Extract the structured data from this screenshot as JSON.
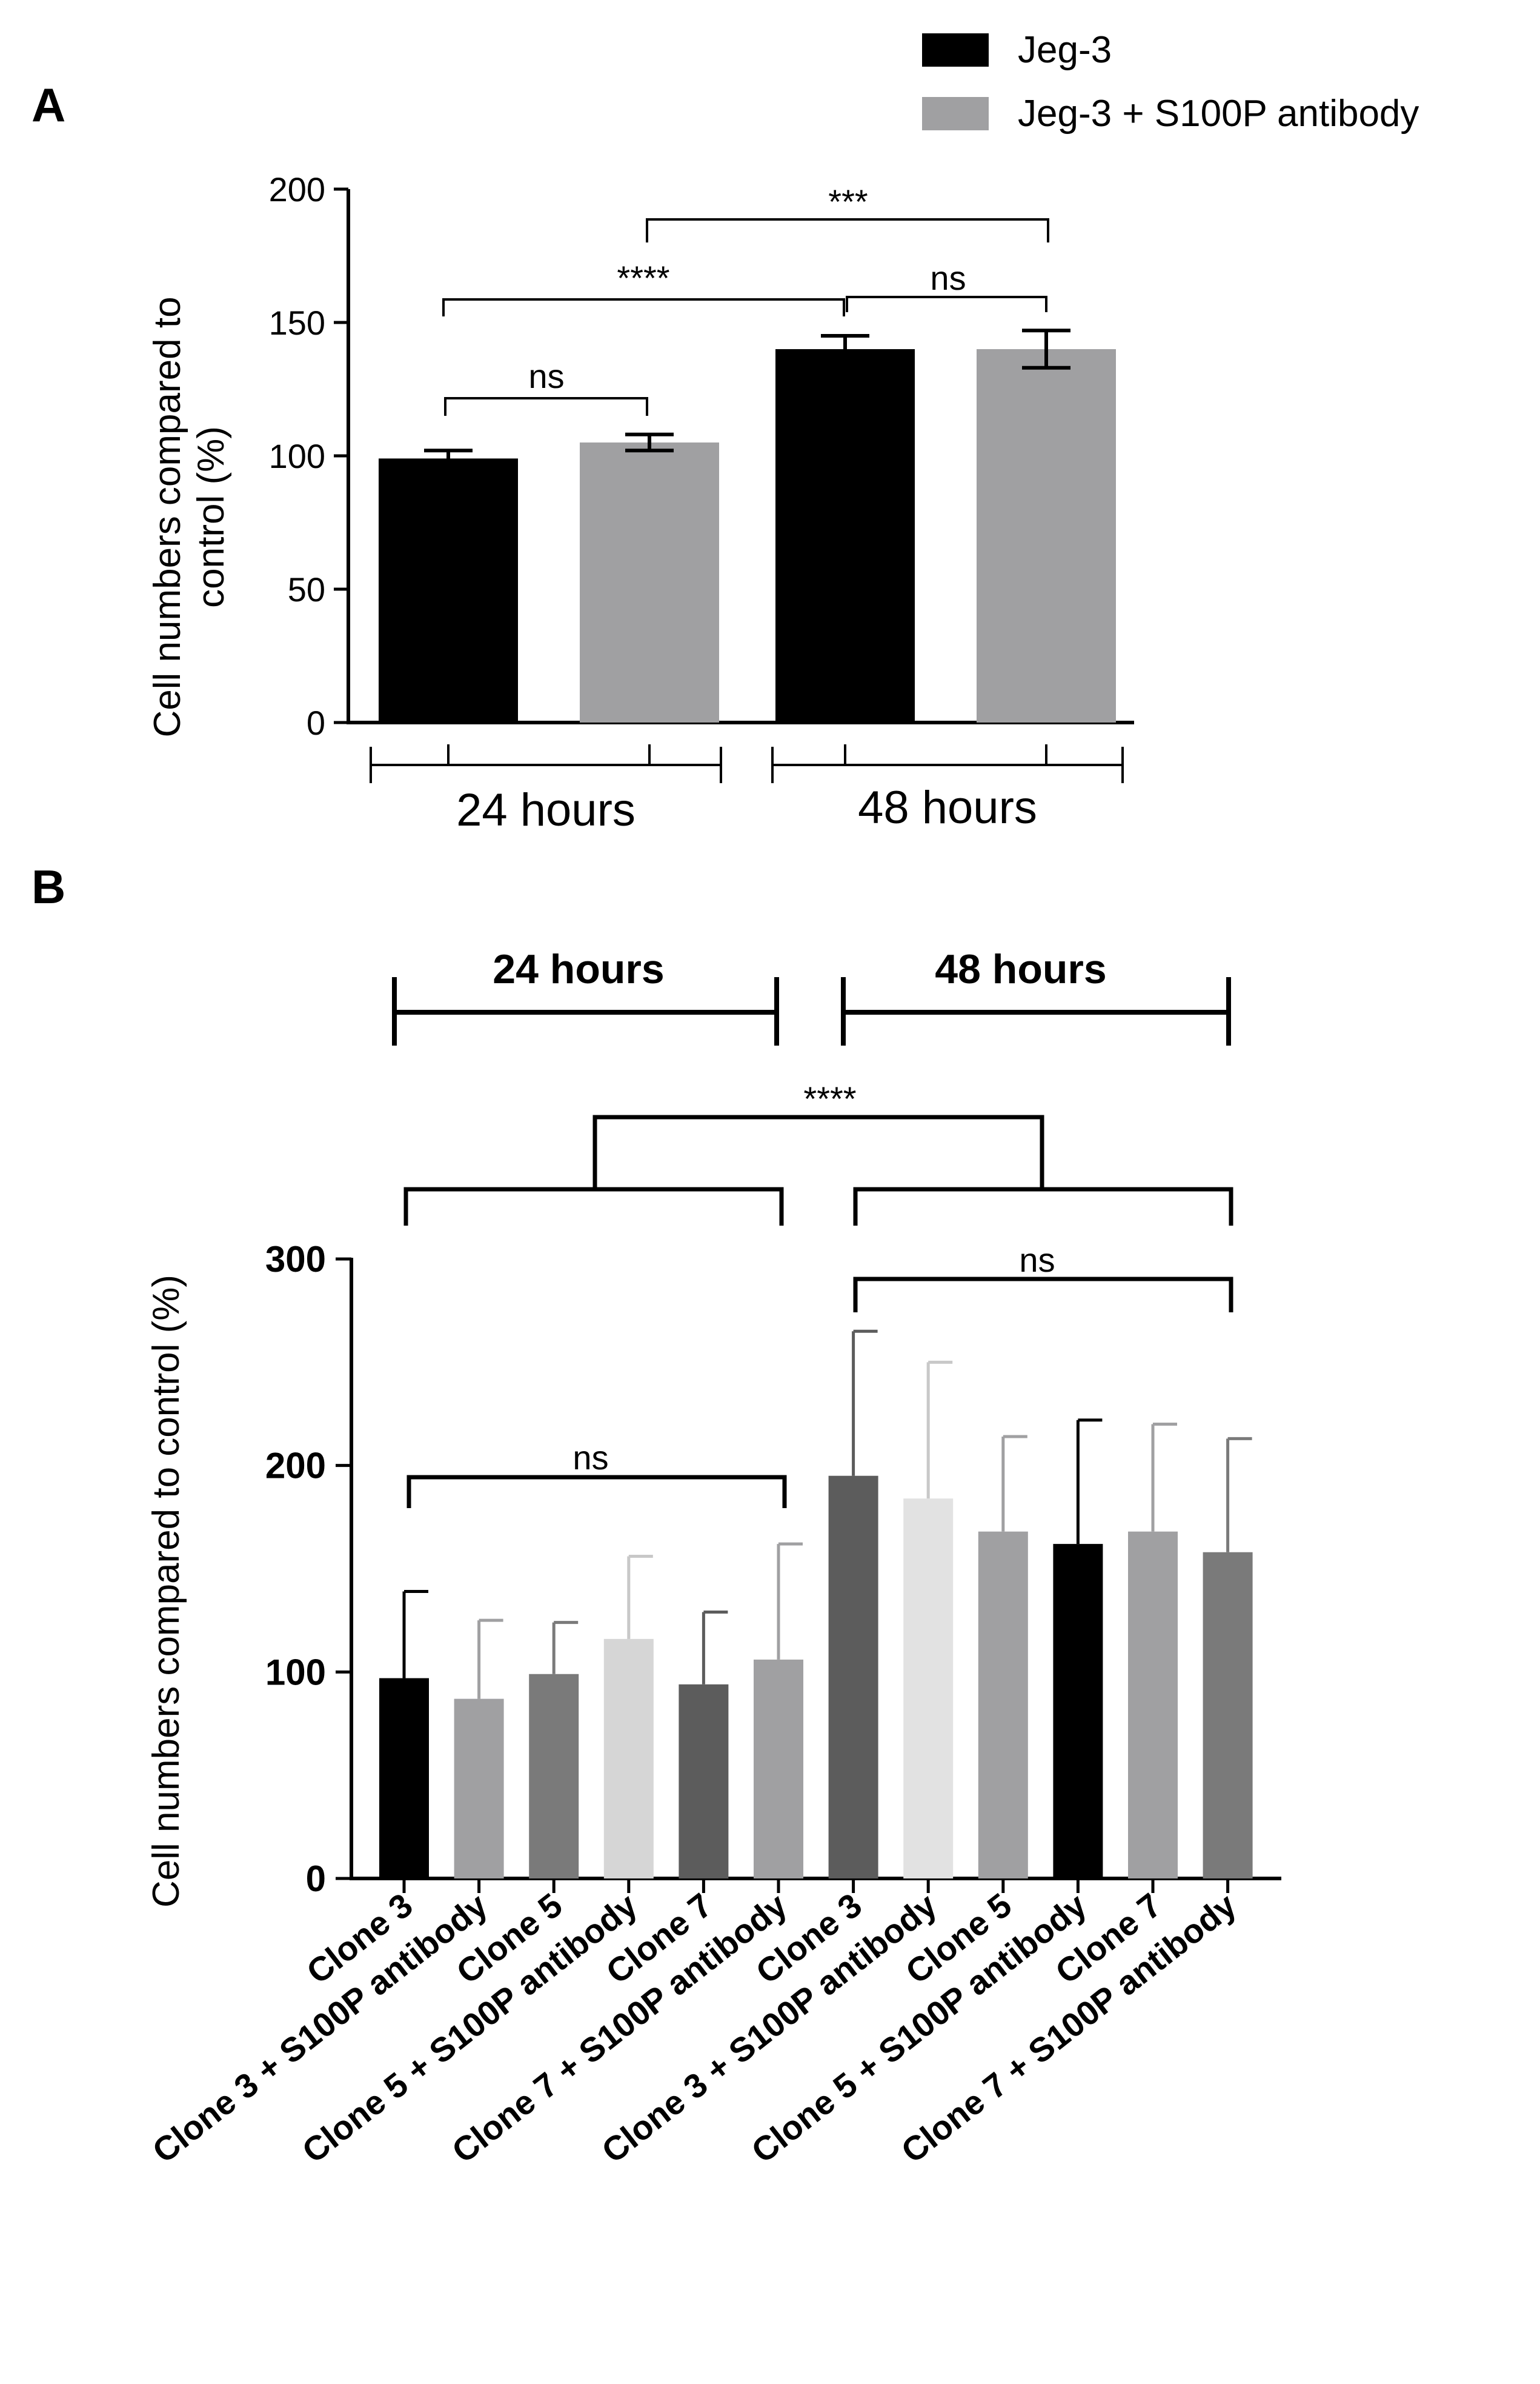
{
  "panel_labels": {
    "a": "A",
    "b": "B"
  },
  "chart_data": [
    {
      "type": "bar",
      "panel": "A",
      "title": "",
      "ylabel": "Cell numbers compared to control (%)",
      "ylabel_lines": [
        "Cell numbers compared to",
        "control (%)"
      ],
      "ylim": [
        0,
        200
      ],
      "yticks": [
        0,
        50,
        100,
        150,
        200
      ],
      "groups": [
        "24 hours",
        "48 hours"
      ],
      "series": [
        {
          "name": "Jeg-3",
          "color": "#000000",
          "values": [
            99,
            140
          ],
          "errors": [
            3,
            5
          ]
        },
        {
          "name": "Jeg-3 + S100P antibody",
          "color": "#a0a0a2",
          "values": [
            105,
            140
          ],
          "errors": [
            3,
            7
          ]
        }
      ],
      "legend": {
        "position": "top-right",
        "items": [
          "Jeg-3",
          "Jeg-3 + S100P antibody"
        ]
      },
      "annotations": [
        {
          "text": "ns",
          "between": [
            "24 hours|Jeg-3",
            "24 hours|Jeg-3 + S100P antibody"
          ]
        },
        {
          "text": "ns",
          "between": [
            "48 hours|Jeg-3",
            "48 hours|Jeg-3 + S100P antibody"
          ]
        },
        {
          "text": "****",
          "between": [
            "24 hours|Jeg-3",
            "48 hours|Jeg-3"
          ]
        },
        {
          "text": "***",
          "between": [
            "24 hours|Jeg-3 + S100P antibody",
            "48 hours|Jeg-3 + S100P antibody"
          ]
        }
      ]
    },
    {
      "type": "bar",
      "panel": "B",
      "title": "",
      "ylabel": "Cell numbers compared to control (%)",
      "ylim": [
        0,
        300
      ],
      "yticks": [
        0,
        100,
        200,
        300
      ],
      "categories": [
        "Clone 3",
        "Clone 3 + S100P antibody",
        "Clone 5",
        "Clone 5 + S100P antibody",
        "Clone 7",
        "Clone 7 + S100P antibody",
        "Clone 3",
        "Clone 3 + S100P antibody",
        "Clone 5",
        "Clone 5 + S100P antibody",
        "Clone 7",
        "Clone 7 + S100P antibody"
      ],
      "values": [
        97,
        87,
        99,
        116,
        94,
        106,
        195,
        184,
        168,
        162,
        168,
        158
      ],
      "errors": [
        42,
        38,
        25,
        40,
        35,
        56,
        70,
        66,
        46,
        60,
        52,
        55
      ],
      "colors": [
        "#000000",
        "#a0a0a2",
        "#7a7a7a",
        "#d6d6d6",
        "#5c5c5c",
        "#a0a0a2",
        "#5c5c5c",
        "#e2e2e2",
        "#a0a0a2",
        "#000000",
        "#a0a0a2",
        "#7a7a7a"
      ],
      "groups": [
        {
          "label": "24 hours",
          "bars": [
            0,
            5
          ]
        },
        {
          "label": "48 hours",
          "bars": [
            6,
            11
          ]
        }
      ],
      "annotations": [
        {
          "text": "ns",
          "between": [
            0,
            5
          ]
        },
        {
          "text": "ns",
          "between": [
            6,
            11
          ]
        },
        {
          "text": "****",
          "between": [
            "24 hours",
            "48 hours"
          ]
        }
      ]
    }
  ]
}
